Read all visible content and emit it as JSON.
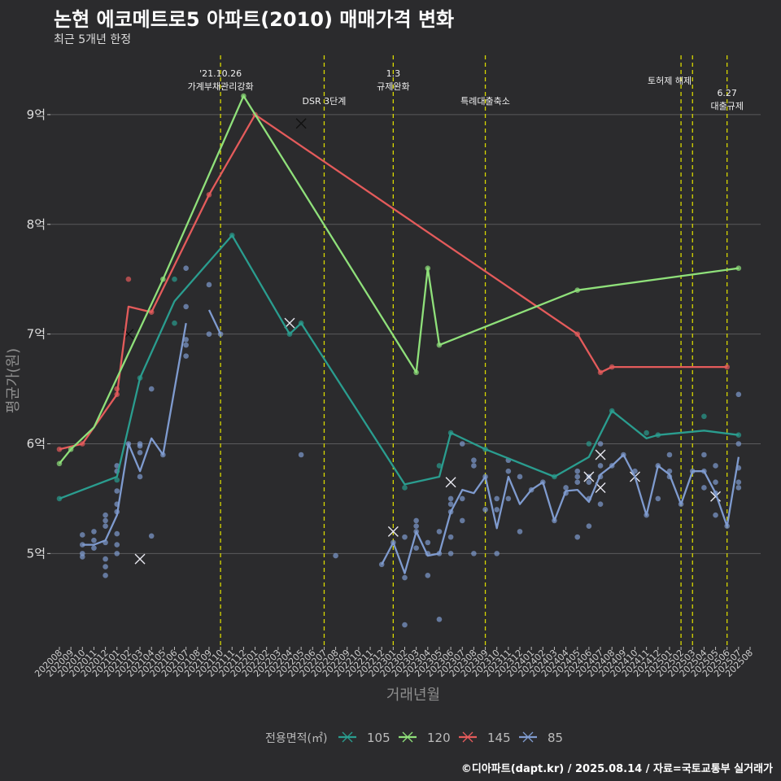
{
  "header": {
    "title": "논현 에코메트로5 아파트(2010) 매매가격 변화",
    "subtitle": "최근 5개년 한정"
  },
  "footer": {
    "credit": "©디아파트(dapt.kr) / 2025.08.14 / 자료=국토교통부 실거래가"
  },
  "colors": {
    "105": "#2a9d8f",
    "120": "#8fe07a",
    "145": "#e45b5b",
    "85": "#7f9bcf"
  },
  "chart_data": {
    "type": "line",
    "title": "논현 에코메트로5 아파트(2010) 매매가격 변화",
    "subtitle": "최근 5개년 한정",
    "xlabel": "거래년월",
    "ylabel": "평균가(원)",
    "ylim": [
      4.15,
      9.6
    ],
    "y_ticks": [
      5,
      6,
      7,
      8,
      9
    ],
    "y_tick_labels": [
      "5억",
      "6억",
      "7억",
      "8억",
      "9억"
    ],
    "x_tick_labels": [
      "202008",
      "202009",
      "202010",
      "202011",
      "202012",
      "202101",
      "202102",
      "202103",
      "202104",
      "202105",
      "202106",
      "202107",
      "202108",
      "202109",
      "202110",
      "202111",
      "202112",
      "202201",
      "202202",
      "202203",
      "202204",
      "202205",
      "202206",
      "202207",
      "202208",
      "202209",
      "202210",
      "202211",
      "202212",
      "202301",
      "202302",
      "202303",
      "202304",
      "202305",
      "202306",
      "202307",
      "202308",
      "202309",
      "202310",
      "202311",
      "202312",
      "202401",
      "202402",
      "202403",
      "202404",
      "202405",
      "202406",
      "202407",
      "202408",
      "202409",
      "202410",
      "202411",
      "202412",
      "202501",
      "202502",
      "202503",
      "202504",
      "202505",
      "202506",
      "202507",
      "202508"
    ],
    "legend": {
      "title": "전용면적(㎡)",
      "position": "bottom",
      "entries": [
        "105",
        "120",
        "145",
        "85"
      ]
    },
    "events": [
      {
        "x": "202110",
        "lines": [
          "'21.10.26",
          "가계부채관리강화"
        ]
      },
      {
        "x": "202207",
        "lines": [
          "DSR 3단계"
        ]
      },
      {
        "x": "202301",
        "lines": [
          "1.3",
          "규제완화"
        ]
      },
      {
        "x": "202309",
        "lines": [
          "특례대출축소"
        ]
      },
      {
        "x": "202502",
        "lines": [
          "토허제 해제"
        ]
      },
      {
        "x": "202503",
        "lines": []
      },
      {
        "x": "202506",
        "lines": [
          "6.27",
          "대출규제"
        ]
      }
    ],
    "series": [
      {
        "name": "105",
        "line": [
          [
            "202008",
            5.5
          ],
          [
            "202101",
            5.7
          ],
          [
            "202103",
            6.6
          ],
          [
            "202106",
            7.3
          ],
          [
            "202111",
            7.9
          ],
          [
            "202204",
            7.0
          ],
          [
            "202205",
            7.1
          ],
          [
            "202302",
            5.63
          ],
          [
            "202305",
            5.7
          ],
          [
            "202306",
            6.1
          ],
          [
            "202309",
            5.95
          ],
          [
            "202403",
            5.7
          ],
          [
            "202406",
            5.88
          ],
          [
            "202408",
            6.3
          ],
          [
            "202411",
            6.05
          ],
          [
            "202412",
            6.08
          ],
          [
            "202504",
            6.12
          ],
          [
            "202507",
            6.08
          ]
        ],
        "points": [
          [
            "202008",
            5.5
          ],
          [
            "202101",
            5.67
          ],
          [
            "202103",
            6.6
          ],
          [
            "202106",
            7.1
          ],
          [
            "202106",
            7.5
          ],
          [
            "202111",
            7.9
          ],
          [
            "202204",
            7.0
          ],
          [
            "202205",
            7.1
          ],
          [
            "202302",
            5.6
          ],
          [
            "202305",
            5.8
          ],
          [
            "202306",
            6.1
          ],
          [
            "202309",
            5.95
          ],
          [
            "202403",
            5.7
          ],
          [
            "202406",
            6.0
          ],
          [
            "202408",
            6.3
          ],
          [
            "202411",
            6.1
          ],
          [
            "202412",
            6.08
          ],
          [
            "202504",
            6.25
          ],
          [
            "202507",
            6.08
          ]
        ],
        "crosses": []
      },
      {
        "name": "120",
        "line": [
          [
            "202008",
            5.82
          ],
          [
            "202009",
            5.95
          ],
          [
            "202011",
            6.15
          ],
          [
            "202105",
            7.5
          ],
          [
            "202112",
            9.17
          ],
          [
            "202303",
            6.65
          ],
          [
            "202304",
            7.6
          ],
          [
            "202305",
            6.9
          ],
          [
            "202405",
            7.4
          ],
          [
            "202507",
            7.6
          ]
        ],
        "points": [
          [
            "202008",
            5.82
          ],
          [
            "202009",
            5.95
          ],
          [
            "202105",
            7.5
          ],
          [
            "202112",
            9.17
          ],
          [
            "202303",
            6.65
          ],
          [
            "202304",
            7.6
          ],
          [
            "202305",
            6.9
          ],
          [
            "202405",
            7.4
          ],
          [
            "202507",
            7.6
          ]
        ],
        "crosses": []
      },
      {
        "name": "145",
        "line": [
          [
            "202008",
            5.95
          ],
          [
            "202010",
            6.0
          ],
          [
            "202101",
            6.45
          ],
          [
            "202102",
            7.25
          ],
          [
            "202104",
            7.2
          ],
          [
            "202109",
            8.27
          ],
          [
            "202201",
            9.0
          ],
          [
            "202405",
            7.0
          ],
          [
            "202407",
            6.65
          ],
          [
            "202408",
            6.7
          ],
          [
            "202506",
            6.7
          ]
        ],
        "points": [
          [
            "202008",
            5.95
          ],
          [
            "202010",
            6.0
          ],
          [
            "202101",
            6.45
          ],
          [
            "202101",
            6.5
          ],
          [
            "202102",
            7.5
          ],
          [
            "202104",
            7.2
          ],
          [
            "202109",
            8.27
          ],
          [
            "202201",
            9.0
          ],
          [
            "202405",
            7.0
          ],
          [
            "202407",
            6.65
          ],
          [
            "202408",
            6.7
          ],
          [
            "202506",
            6.7
          ]
        ],
        "crosses": [
          [
            "202102",
            7.0
          ],
          [
            "202205",
            8.92
          ]
        ]
      },
      {
        "name": "85",
        "line": [
          [
            "202010",
            5.08
          ],
          [
            "202011",
            5.08
          ],
          [
            "202012",
            5.12
          ],
          [
            "202101",
            5.35
          ],
          [
            "202102",
            6.0
          ],
          [
            "202103",
            5.75
          ],
          [
            "202104",
            6.05
          ],
          [
            "202105",
            5.9
          ],
          [
            "202107",
            7.1
          ]
        ],
        "line2": [
          [
            "202109",
            7.22
          ],
          [
            "202110",
            7.0
          ]
        ],
        "line3": [
          [
            "202212",
            4.9
          ],
          [
            "202301",
            5.1
          ],
          [
            "202302",
            4.82
          ],
          [
            "202303",
            5.2
          ],
          [
            "202304",
            4.98
          ],
          [
            "202305",
            5.0
          ],
          [
            "202306",
            5.38
          ],
          [
            "202307",
            5.58
          ],
          [
            "202308",
            5.55
          ],
          [
            "202309",
            5.7
          ],
          [
            "202310",
            5.23
          ],
          [
            "202311",
            5.7
          ],
          [
            "202312",
            5.45
          ],
          [
            "202401",
            5.58
          ],
          [
            "202402",
            5.65
          ],
          [
            "202403",
            5.3
          ],
          [
            "202404",
            5.57
          ],
          [
            "202405",
            5.58
          ],
          [
            "202406",
            5.47
          ],
          [
            "202407",
            5.72
          ],
          [
            "202408",
            5.8
          ],
          [
            "202409",
            5.9
          ],
          [
            "202410",
            5.7
          ],
          [
            "202411",
            5.35
          ],
          [
            "202412",
            5.8
          ],
          [
            "202501",
            5.72
          ],
          [
            "202502",
            5.45
          ],
          [
            "202503",
            5.75
          ],
          [
            "202504",
            5.75
          ],
          [
            "202505",
            5.55
          ],
          [
            "202506",
            5.25
          ],
          [
            "202507",
            5.88
          ]
        ],
        "points": [
          [
            "202010",
            4.97
          ],
          [
            "202010",
            5.0
          ],
          [
            "202010",
            5.08
          ],
          [
            "202010",
            5.17
          ],
          [
            "202011",
            5.05
          ],
          [
            "202011",
            5.12
          ],
          [
            "202011",
            5.2
          ],
          [
            "202012",
            4.8
          ],
          [
            "202012",
            4.88
          ],
          [
            "202012",
            4.95
          ],
          [
            "202012",
            5.1
          ],
          [
            "202012",
            5.25
          ],
          [
            "202012",
            5.3
          ],
          [
            "202012",
            5.35
          ],
          [
            "202101",
            5.0
          ],
          [
            "202101",
            5.08
          ],
          [
            "202101",
            5.18
          ],
          [
            "202101",
            5.38
          ],
          [
            "202101",
            5.45
          ],
          [
            "202101",
            5.57
          ],
          [
            "202101",
            5.75
          ],
          [
            "202101",
            5.8
          ],
          [
            "202102",
            6.0
          ],
          [
            "202103",
            5.7
          ],
          [
            "202103",
            5.92
          ],
          [
            "202103",
            5.98
          ],
          [
            "202103",
            6.0
          ],
          [
            "202104",
            5.16
          ],
          [
            "202104",
            6.5
          ],
          [
            "202105",
            5.9
          ],
          [
            "202107",
            6.8
          ],
          [
            "202107",
            6.9
          ],
          [
            "202107",
            6.95
          ],
          [
            "202107",
            7.25
          ],
          [
            "202107",
            7.6
          ],
          [
            "202109",
            7.0
          ],
          [
            "202109",
            7.45
          ],
          [
            "202110",
            7.0
          ],
          [
            "202205",
            5.9
          ],
          [
            "202208",
            4.98
          ],
          [
            "202212",
            4.9
          ],
          [
            "202301",
            5.1
          ],
          [
            "202302",
            4.35
          ],
          [
            "202302",
            4.78
          ],
          [
            "202302",
            5.15
          ],
          [
            "202303",
            5.05
          ],
          [
            "202303",
            5.2
          ],
          [
            "202303",
            5.25
          ],
          [
            "202303",
            5.3
          ],
          [
            "202304",
            4.8
          ],
          [
            "202304",
            5.0
          ],
          [
            "202304",
            5.1
          ],
          [
            "202305",
            4.4
          ],
          [
            "202305",
            5.0
          ],
          [
            "202305",
            5.2
          ],
          [
            "202306",
            5.0
          ],
          [
            "202306",
            5.15
          ],
          [
            "202306",
            5.38
          ],
          [
            "202306",
            5.45
          ],
          [
            "202306",
            5.5
          ],
          [
            "202307",
            5.3
          ],
          [
            "202307",
            5.5
          ],
          [
            "202307",
            6.0
          ],
          [
            "202308",
            5.0
          ],
          [
            "202308",
            5.8
          ],
          [
            "202308",
            5.85
          ],
          [
            "202309",
            5.4
          ],
          [
            "202309",
            5.7
          ],
          [
            "202310",
            5.0
          ],
          [
            "202310",
            5.4
          ],
          [
            "202310",
            5.5
          ],
          [
            "202311",
            5.5
          ],
          [
            "202311",
            5.75
          ],
          [
            "202311",
            5.85
          ],
          [
            "202312",
            5.2
          ],
          [
            "202312",
            5.7
          ],
          [
            "202401",
            5.58
          ],
          [
            "202402",
            5.65
          ],
          [
            "202403",
            5.3
          ],
          [
            "202404",
            5.55
          ],
          [
            "202404",
            5.6
          ],
          [
            "202405",
            5.15
          ],
          [
            "202405",
            5.65
          ],
          [
            "202405",
            5.7
          ],
          [
            "202405",
            5.75
          ],
          [
            "202406",
            5.25
          ],
          [
            "202406",
            5.5
          ],
          [
            "202406",
            5.65
          ],
          [
            "202406",
            5.7
          ],
          [
            "202407",
            5.45
          ],
          [
            "202407",
            5.7
          ],
          [
            "202407",
            5.8
          ],
          [
            "202407",
            6.0
          ],
          [
            "202408",
            5.8
          ],
          [
            "202409",
            5.9
          ],
          [
            "202410",
            5.75
          ],
          [
            "202411",
            5.35
          ],
          [
            "202412",
            5.5
          ],
          [
            "202412",
            5.8
          ],
          [
            "202501",
            5.7
          ],
          [
            "202501",
            5.75
          ],
          [
            "202501",
            5.9
          ],
          [
            "202502",
            5.45
          ],
          [
            "202503",
            5.75
          ],
          [
            "202504",
            5.6
          ],
          [
            "202504",
            5.75
          ],
          [
            "202504",
            5.9
          ],
          [
            "202505",
            5.35
          ],
          [
            "202505",
            5.55
          ],
          [
            "202505",
            5.65
          ],
          [
            "202505",
            5.8
          ],
          [
            "202506",
            5.25
          ],
          [
            "202507",
            5.6
          ],
          [
            "202507",
            5.65
          ],
          [
            "202507",
            5.78
          ],
          [
            "202507",
            6.0
          ],
          [
            "202507",
            6.45
          ]
        ],
        "crosses": [
          [
            "202103",
            4.95
          ],
          [
            "202204",
            7.1
          ],
          [
            "202301",
            5.2
          ],
          [
            "202306",
            5.65
          ],
          [
            "202406",
            5.7
          ],
          [
            "202407",
            5.6
          ],
          [
            "202407",
            5.9
          ],
          [
            "202410",
            5.7
          ],
          [
            "202505",
            5.52
          ]
        ]
      }
    ]
  }
}
